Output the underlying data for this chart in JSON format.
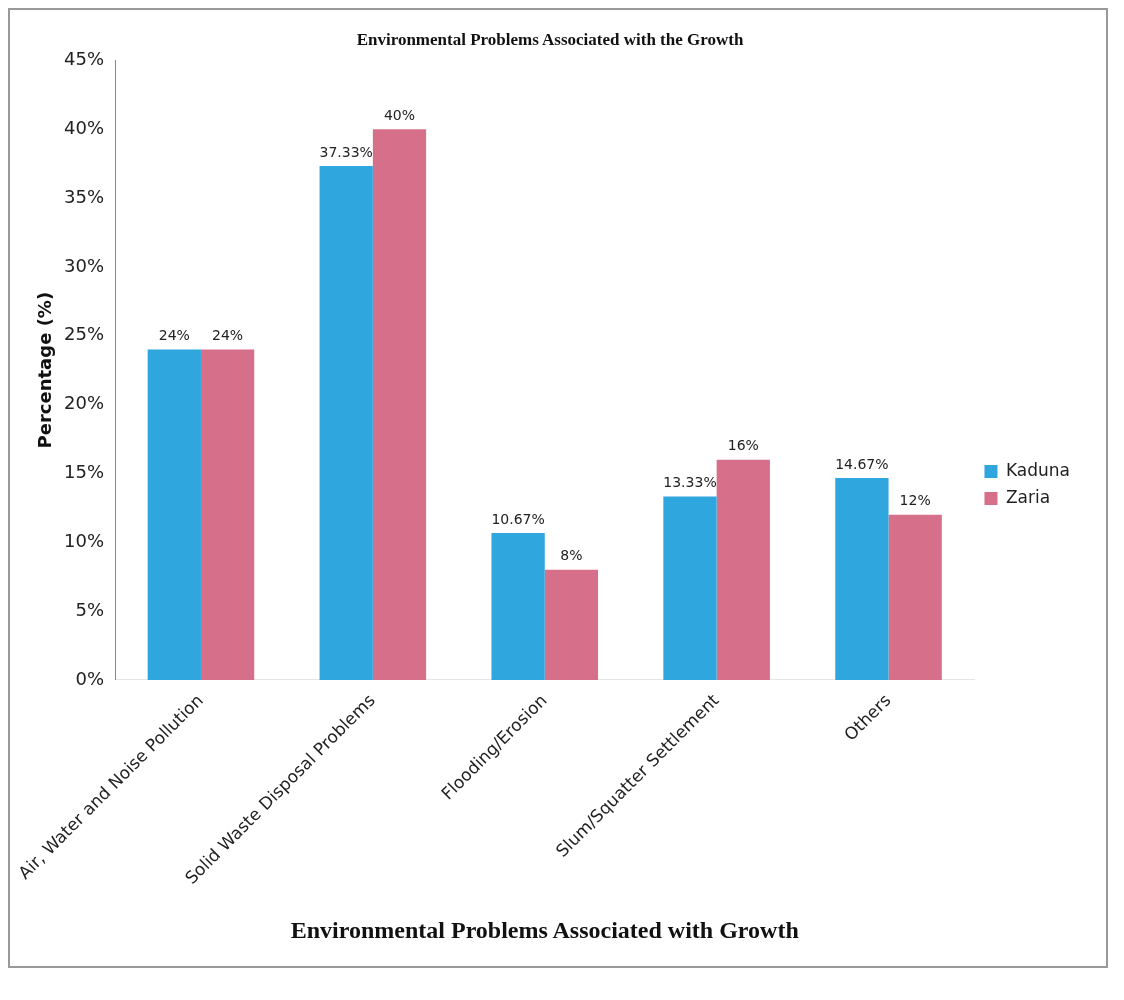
{
  "chart_data": {
    "type": "bar",
    "title": "Environmental Problems Associated with the Growth",
    "xlabel": "Environmental Problems Associated with Growth",
    "ylabel": "Percentage (%)",
    "categories": [
      "Air, Water and Noise Pollution",
      "Solid Waste Disposal Problems",
      "Flooding/Erosion",
      "Slum/Squatter Settlement",
      "Others"
    ],
    "series": [
      {
        "name": "Kaduna",
        "color": "#2fa6dd",
        "values": [
          24,
          37.33,
          10.67,
          13.33,
          14.67
        ],
        "value_labels": [
          "24%",
          "37.33%",
          "10.67%",
          "13.33%",
          "14.67%"
        ]
      },
      {
        "name": "Zaria",
        "color": "#d56f8a",
        "values": [
          24,
          40,
          8,
          16,
          12
        ],
        "value_labels": [
          "24%",
          "40%",
          "8%",
          "16%",
          "12%"
        ]
      }
    ],
    "ylim": [
      0,
      45
    ],
    "yticks": [
      {
        "value": 0,
        "label": "0%"
      },
      {
        "value": 5,
        "label": "5%"
      },
      {
        "value": 10,
        "label": "10%"
      },
      {
        "value": 15,
        "label": "15%"
      },
      {
        "value": 20,
        "label": "20%"
      },
      {
        "value": 25,
        "label": "25%"
      },
      {
        "value": 30,
        "label": "30%"
      },
      {
        "value": 35,
        "label": "35%"
      },
      {
        "value": 40,
        "label": "40%"
      },
      {
        "value": 45,
        "label": "45%"
      }
    ],
    "grid": false,
    "legend": "right"
  }
}
